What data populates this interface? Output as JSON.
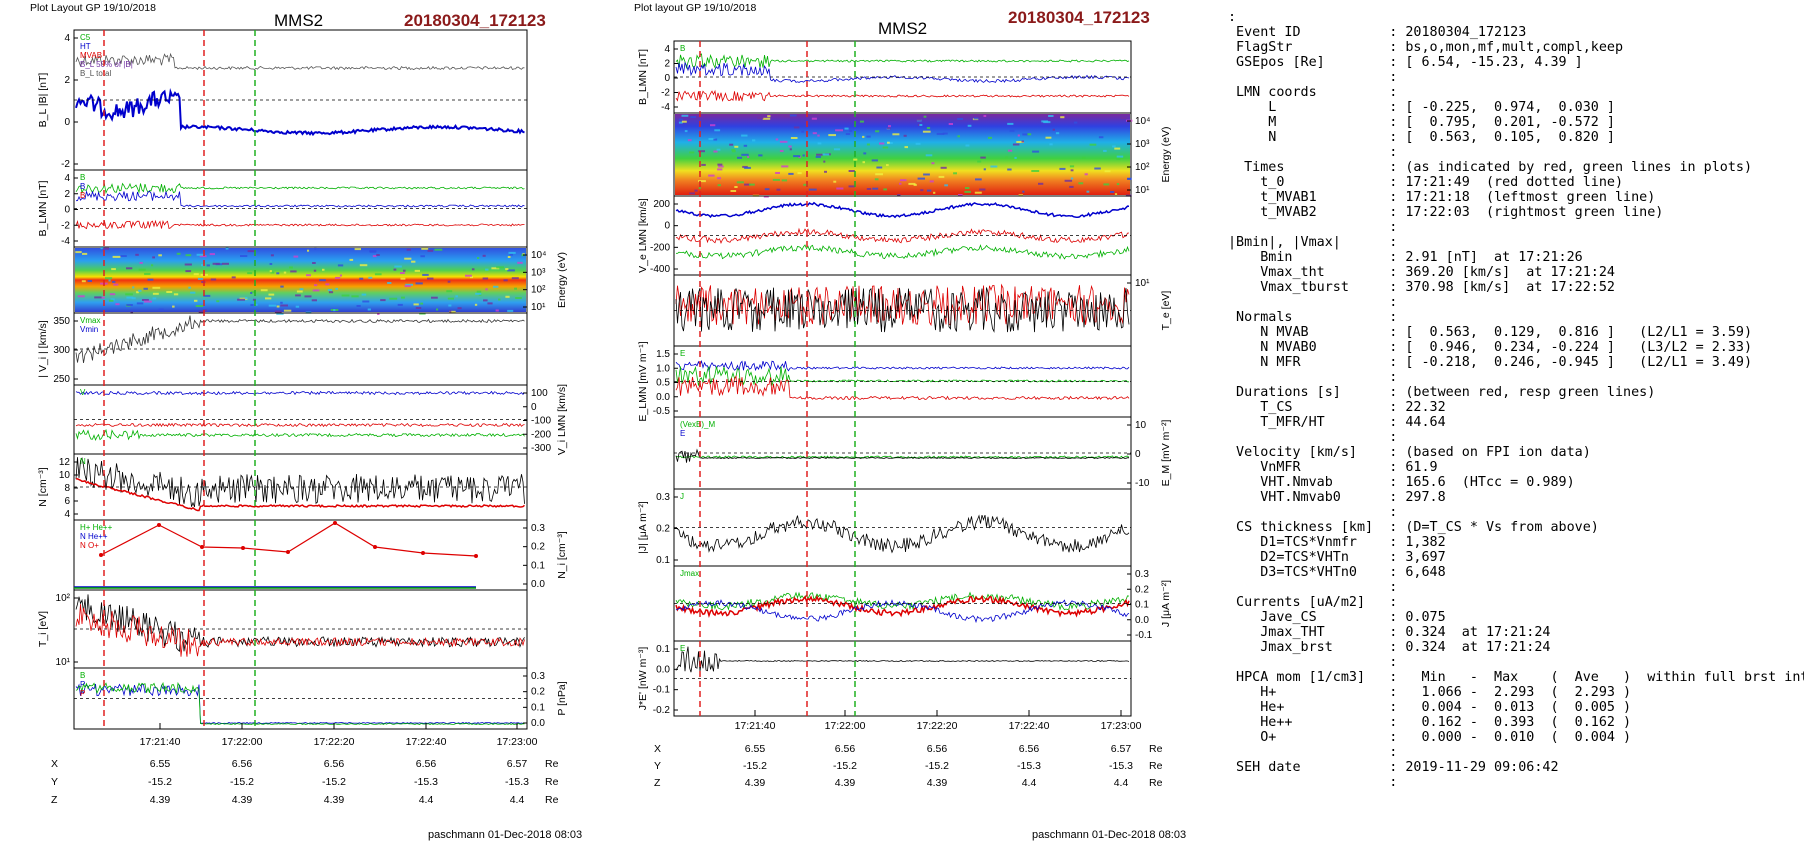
{
  "plot1": {
    "layout_label": "Plot Layout GP 19/10/2018",
    "spacecraft": "MMS2",
    "event": "20180304_172123",
    "footer": "paschmann 01-Dec-2018 08:03",
    "time_ticks": [
      "17:21:40",
      "17:22:00",
      "17:22:20",
      "17:22:40",
      "17:23:00"
    ],
    "ephemeris": {
      "labels": [
        "X",
        "Y",
        "Z"
      ],
      "unit": "Re",
      "X": [
        "6.55",
        "6.56",
        "6.56",
        "6.56",
        "6.57"
      ],
      "Y": [
        "-15.2",
        "-15.2",
        "-15.2",
        "-15.3",
        "-15.3"
      ],
      "Z": [
        "4.39",
        "4.39",
        "4.39",
        "4.4",
        "4.4"
      ]
    },
    "panels": [
      {
        "ylabel": "B_L |B| [nT]",
        "yticks": [
          "4",
          "2",
          "0",
          "-2"
        ],
        "right_label": "",
        "right_ticks": [],
        "legend": [
          "C5",
          "HT",
          "MVAB",
          "B_L 50% of |B|",
          "B_L total"
        ]
      },
      {
        "ylabel": "B_LMN [nT]",
        "yticks": [
          "4",
          "2",
          "0",
          "-2",
          "-4"
        ],
        "right_label": "",
        "right_ticks": [],
        "legend": [
          "B",
          "B",
          "B"
        ]
      },
      {
        "ylabel": "",
        "yticks": [],
        "right_label": "Energy (eV)",
        "right_ticks": [
          "10⁴",
          "10³",
          "10²",
          "10¹"
        ],
        "legend": []
      },
      {
        "ylabel": "| V_i | [km/s]",
        "yticks": [
          "350",
          "300",
          "250"
        ],
        "right_label": "",
        "right_ticks": [],
        "legend": [
          "Vmax",
          "Vmin"
        ]
      },
      {
        "ylabel": "",
        "yticks": [],
        "right_label": "V_i LMN [km/s]",
        "right_ticks": [
          "100",
          "0",
          "-100",
          "-200",
          "-300"
        ],
        "legend": [
          "V"
        ]
      },
      {
        "ylabel": "N [cm⁻³]",
        "yticks": [
          "12",
          "10",
          "8",
          "6",
          "4"
        ],
        "right_label": "",
        "right_ticks": [],
        "legend": [
          "N"
        ]
      },
      {
        "ylabel": "",
        "yticks": [],
        "right_label": "N_i [cm⁻³]",
        "right_ticks": [
          "0.3",
          "0.2",
          "0.1",
          "0.0"
        ],
        "legend": [
          "H+ He++",
          "N He++",
          "N O+"
        ]
      },
      {
        "ylabel": "T_i [eV]",
        "yticks": [
          "10²",
          "10¹"
        ],
        "right_label": "",
        "right_ticks": [],
        "legend": []
      },
      {
        "ylabel": "",
        "yticks": [],
        "right_label": "P [nPa]",
        "right_ticks": [
          "0.3",
          "0.2",
          "0.1",
          "0.0"
        ],
        "legend": [
          "B",
          "P",
          "P"
        ]
      }
    ]
  },
  "plot2": {
    "layout_label": "Plot layout GP 19/10/2018",
    "spacecraft": "MMS2",
    "event": "20180304_172123",
    "footer": "paschmann 01-Dec-2018 08:03",
    "time_ticks": [
      "17:21:40",
      "17:22:00",
      "17:22:20",
      "17:22:40",
      "17:23:00"
    ],
    "ephemeris": {
      "labels": [
        "X",
        "Y",
        "Z"
      ],
      "unit": "Re",
      "X": [
        "6.55",
        "6.56",
        "6.56",
        "6.56",
        "6.57"
      ],
      "Y": [
        "-15.2",
        "-15.2",
        "-15.2",
        "-15.3",
        "-15.3"
      ],
      "Z": [
        "4.39",
        "4.39",
        "4.39",
        "4.4",
        "4.4"
      ]
    },
    "panels": [
      {
        "ylabel": "B_LMN [nT]",
        "yticks": [
          "4",
          "2",
          "0",
          "-2",
          "-4"
        ],
        "right_label": "",
        "right_ticks": [],
        "legend": [
          "B"
        ]
      },
      {
        "ylabel": "",
        "yticks": [],
        "right_label": "Energy (eV)",
        "right_ticks": [
          "10⁴",
          "10³",
          "10²",
          "10¹"
        ],
        "legend": []
      },
      {
        "ylabel": "V_e LMN [km/s]",
        "yticks": [
          "200",
          "0",
          "-200",
          "-400"
        ],
        "right_label": "",
        "right_ticks": [],
        "legend": []
      },
      {
        "ylabel": "",
        "yticks": [],
        "right_label": "T_e [eV]",
        "right_ticks": [
          "10¹"
        ],
        "legend": []
      },
      {
        "ylabel": "E_LMN [mV m⁻¹]",
        "yticks": [
          "1.5",
          "1.0",
          "0.5",
          "0.0",
          "-0.5"
        ],
        "right_label": "",
        "right_ticks": [],
        "legend": [
          "E"
        ]
      },
      {
        "ylabel": "",
        "yticks": [],
        "right_label": "E_M [mV m⁻²]",
        "right_ticks": [
          "10",
          "0",
          "-10"
        ],
        "legend": [
          "(VexB)_M",
          "E"
        ]
      },
      {
        "ylabel": "|J| [μA m⁻²]",
        "yticks": [
          "0.3",
          "0.2",
          "0.1"
        ],
        "right_label": "",
        "right_ticks": [],
        "legend": [
          "J"
        ]
      },
      {
        "ylabel": "",
        "yticks": [],
        "right_label": "J [μA m⁻²]",
        "right_ticks": [
          "0.3",
          "0.2",
          "0.1",
          "0.0",
          "-0.1"
        ],
        "legend": [
          "Jmax"
        ]
      },
      {
        "ylabel": "J*E' [nW m⁻³]",
        "yticks": [
          "0.1",
          "0.0",
          "-0.1",
          "-0.2"
        ],
        "right_label": "",
        "right_ticks": [],
        "legend": [
          "E"
        ]
      }
    ]
  },
  "info_lines": [
    ":",
    " Event ID           : 20180304_172123",
    " FlagStr            : bs,o,mon,mf,mult,compl,keep",
    " GSEpos [Re]        : [ 6.54, -15.23, 4.39 ]",
    "                    :",
    " LMN coords         :",
    "     L              : [ -0.225,  0.974,  0.030 ]",
    "     M              : [  0.795,  0.201, -0.572 ]",
    "     N              : [  0.563,  0.105,  0.820 ]",
    "                    :",
    "  Times             : (as indicated by red, green lines in plots)",
    "    t_0             : 17:21:49  (red dotted line)",
    "    t_MVAB1         : 17:21:18  (leftmost green line)",
    "    t_MVAB2         : 17:22:03  (rightmost green line)",
    "                    :",
    "|Bmin|, |Vmax|      :",
    "    Bmin            : 2.91 [nT]  at 17:21:26",
    "    Vmax_tht        : 369.20 [km/s]  at 17:21:24",
    "    Vmax_tburst     : 370.98 [km/s]  at 17:22:52",
    "                    :",
    " Normals            :",
    "    N MVAB          : [  0.563,  0.129,  0.816 ]   (L2/L1 = 3.59)",
    "    N MVAB0         : [  0.946,  0.234, -0.224 ]   (L3/L2 = 2.33)",
    "    N MFR           : [ -0.218,  0.246, -0.945 ]   (L2/L1 = 3.49)",
    "                    :",
    " Durations [s]      : (between red, resp green lines)",
    "    T_CS            : 22.32",
    "    T_MFR/HT        : 44.64",
    "                    :",
    " Velocity [km/s]    : (based on FPI ion data)",
    "    VnMFR           : 61.9",
    "    VHT.Nmvab       : 165.6  (HTcc = 0.989)",
    "    VHT.Nmvab0      : 297.8",
    "                    :",
    " CS thickness [km]  : (D=T_CS * Vs from above)",
    "    D1=TCS*Vnmfr    : 1,382",
    "    D2=TCS*VHTn     : 3,697",
    "    D3=TCS*VHTn0    : 6,648",
    "                    :",
    " Currents [uA/m2]   :",
    "    Jave_CS         : 0.075",
    "    Jmax_THT        : 0.324  at 17:21:24",
    "    Jmax_brst       : 0.324  at 17:21:24",
    "                    :",
    " HPCA mom [1/cm3]   :   Min   -  Max    (  Ave   )  within full brst int",
    "    H+              :   1.066 -  2.293  (  2.293 )",
    "    He+             :   0.004 -  0.013  (  0.005 )",
    "    He++            :   0.162 -  0.393  (  0.162 )",
    "    O+              :   0.000 -  0.010  (  0.004 )",
    "                    :",
    " SEH date           : 2019-11-29 09:06:42",
    "                    :"
  ],
  "chart_data": [
    {
      "type": "line",
      "title": "MMS2 20180304_172123",
      "x_ticks": [
        "17:21:40",
        "17:22:00",
        "17:22:20",
        "17:22:40",
        "17:23:00"
      ],
      "panels": [
        "B_L |B| [nT]",
        "B_LMN [nT]",
        "Energy (eV)",
        "| V_i | [km/s]",
        "V_i LMN [km/s]",
        "N [cm⁻³]",
        "N_i [cm⁻³]",
        "T_i [eV]",
        "P [nPa]"
      ],
      "event_lines": {
        "t_0": "17:21:49",
        "t_MVAB1": "17:21:18",
        "t_MVAB2": "17:22:03"
      },
      "series": [
        {
          "name": "|B|",
          "values": [
            3.9,
            3.7,
            3.5,
            3.5,
            3.5,
            3.5,
            3.5,
            3.5,
            3.5,
            3.5
          ]
        },
        {
          "name": "B_L",
          "values": [
            0.4,
            0.8,
            1.0,
            0.3,
            -1.5,
            -1.2,
            -0.9,
            -0.9,
            -1.0,
            -1.1
          ]
        },
        {
          "name": "N",
          "values": [
            11,
            9,
            8,
            7,
            6.5,
            6,
            6,
            6,
            6,
            6
          ]
        },
        {
          "name": "N He++",
          "values": [
            0.15,
            0.35,
            0.2,
            0.2,
            0.2,
            0.35,
            0.22,
            0.2,
            0.2,
            0.17
          ]
        }
      ]
    },
    {
      "type": "line",
      "title": "MMS2 20180304_172123",
      "x_ticks": [
        "17:21:40",
        "17:22:00",
        "17:22:20",
        "17:22:40",
        "17:23:00"
      ],
      "panels": [
        "B_LMN [nT]",
        "Energy (eV)",
        "V_e LMN [km/s]",
        "T_e [eV]",
        "E_LMN [mV m⁻¹]",
        "E_M [mV m⁻²]",
        "|J| [μA m⁻²]",
        "J [μA m⁻²]",
        "J*E' [nW m⁻³]"
      ],
      "event_lines": {
        "t_0": "17:21:49",
        "t_MVAB1": "17:21:18",
        "t_MVAB2": "17:22:03"
      },
      "series": [
        {
          "name": "B_L",
          "values": [
            2.5,
            2.0,
            1.5,
            1.5,
            1.5,
            1.5,
            1.5,
            1.5,
            1.5,
            1.5
          ]
        },
        {
          "name": "B_M",
          "values": [
            1.0,
            0.5,
            -0.5,
            -1.0,
            -1.0,
            -1.0,
            -1.0,
            -1.0,
            -1.0,
            -1.0
          ]
        },
        {
          "name": "B_N",
          "values": [
            -3,
            -3.5,
            -3.5,
            -3.5,
            -3.5,
            -3.5,
            -3.5,
            -3.5,
            -3.5,
            -3.5
          ]
        },
        {
          "name": "|J|",
          "values": [
            0.15,
            0.12,
            0.1,
            0.05,
            0.1,
            0.13,
            0.07,
            0.12,
            0.06,
            0.1
          ]
        }
      ]
    }
  ]
}
